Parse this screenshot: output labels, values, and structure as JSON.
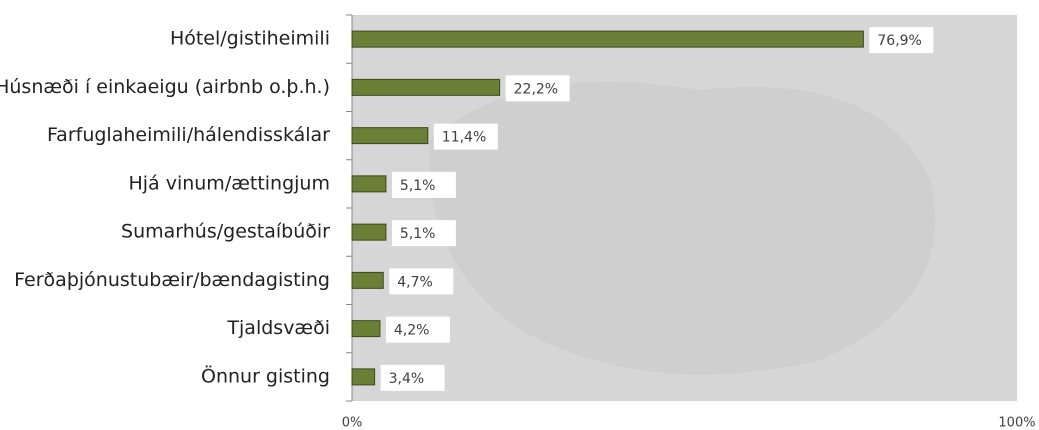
{
  "chart_data": {
    "type": "hbar",
    "categories": [
      "Hótel/gistiheimili",
      "Húsnæði í einkaeigu (airbnb o.þ.h.)",
      "Farfuglaheimili/hálendisskálar",
      "Hjá vinum/ættingjum",
      "Sumarhús/gestaíbúðir",
      "Ferðaþjónustubæir/bændagisting",
      "Tjaldsvæði",
      "Önnur gisting"
    ],
    "values": [
      76.9,
      22.2,
      11.4,
      5.1,
      5.1,
      4.7,
      4.2,
      3.4
    ],
    "value_labels": [
      "76,9%",
      "22,2%",
      "11,4%",
      "5,1%",
      "5,1%",
      "4,7%",
      "4,2%",
      "3,4%"
    ],
    "color": "#6b7f36",
    "xlim": [
      0,
      100
    ],
    "xticks": [
      {
        "value": 0,
        "label": "0%"
      },
      {
        "value": 100,
        "label": "100%"
      }
    ]
  }
}
